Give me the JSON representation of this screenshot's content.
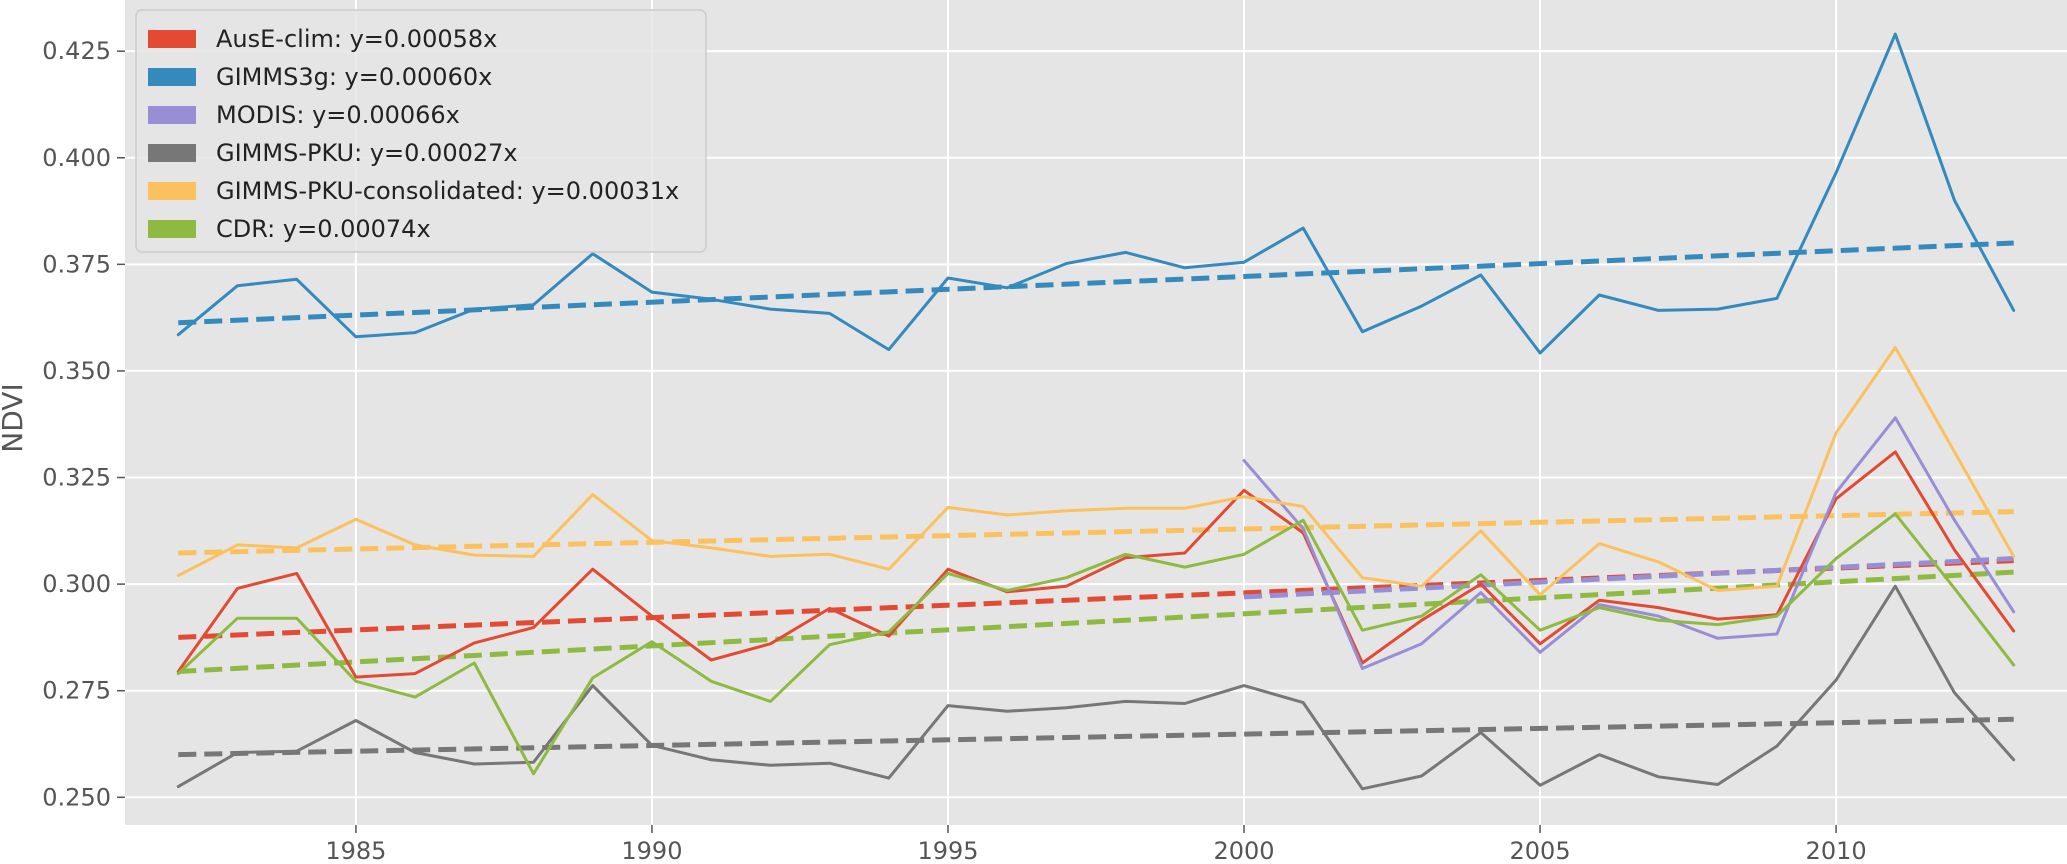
{
  "chart_data": {
    "type": "line",
    "title": "",
    "xlabel": "",
    "ylabel": "NDVI",
    "xlim": [
      1981.1,
      2013.9
    ],
    "ylim": [
      0.2435,
      0.437
    ],
    "x_ticks": [
      1985,
      1990,
      1995,
      2000,
      2005,
      2010
    ],
    "y_ticks": [
      0.25,
      0.275,
      0.3,
      0.325,
      0.35,
      0.375,
      0.4,
      0.425
    ],
    "y_tick_labels": [
      "0.250",
      "0.275",
      "0.300",
      "0.325",
      "0.350",
      "0.375",
      "0.400",
      "0.425"
    ],
    "grid": true,
    "legend_position": "upper-left",
    "background": "#e5e5e5",
    "series": [
      {
        "name": "AusE-clim: y=0.00058x",
        "color": "#e24a33",
        "x_start": 1982,
        "values": [
          0.2795,
          0.299,
          0.3025,
          0.2782,
          0.279,
          0.2862,
          0.2898,
          0.3035,
          0.2925,
          0.2822,
          0.286,
          0.2943,
          0.2878,
          0.3035,
          0.2982,
          0.2995,
          0.3062,
          0.3073,
          0.322,
          0.312,
          0.2815,
          0.2915,
          0.3,
          0.286,
          0.2962,
          0.2945,
          0.2918,
          0.2928,
          0.32,
          0.331,
          0.308,
          0.289
        ],
        "trend": [
          0.2875,
          0.3055
        ]
      },
      {
        "name": "GIMMS3g: y=0.00060x",
        "color": "#348abd",
        "x_start": 1982,
        "values": [
          0.3585,
          0.37,
          0.3715,
          0.358,
          0.359,
          0.3645,
          0.3655,
          0.3775,
          0.3685,
          0.3668,
          0.3645,
          0.3635,
          0.355,
          0.3718,
          0.3695,
          0.3752,
          0.3778,
          0.3742,
          0.3755,
          0.3835,
          0.3592,
          0.3652,
          0.3725,
          0.3542,
          0.3678,
          0.3642,
          0.3645,
          0.367,
          0.3965,
          0.429,
          0.39,
          0.3642
        ],
        "trend": [
          0.3613,
          0.38
        ]
      },
      {
        "name": "MODIS: y=0.00066x",
        "color": "#988ed5",
        "x_start": 2000,
        "values": [
          0.329,
          0.313,
          0.2802,
          0.286,
          0.298,
          0.284,
          0.2952,
          0.2925,
          0.2873,
          0.2883,
          0.3215,
          0.339,
          0.315,
          0.2935
        ],
        "trend": [
          0.297,
          0.306
        ]
      },
      {
        "name": "GIMMS-PKU: y=0.00027x",
        "color": "#777777",
        "x_start": 1982,
        "values": [
          0.2525,
          0.2605,
          0.2608,
          0.268,
          0.2605,
          0.2578,
          0.2582,
          0.2762,
          0.2622,
          0.2588,
          0.2575,
          0.258,
          0.2545,
          0.2715,
          0.2702,
          0.271,
          0.2725,
          0.272,
          0.2762,
          0.2722,
          0.252,
          0.255,
          0.2652,
          0.2528,
          0.26,
          0.2548,
          0.253,
          0.262,
          0.2775,
          0.2995,
          0.2745,
          0.2588
        ],
        "trend": [
          0.26,
          0.2683
        ]
      },
      {
        "name": "GIMMS-PKU-consolidated: y=0.00031x",
        "color": "#fbc15e",
        "x_start": 1982,
        "values": [
          0.302,
          0.3092,
          0.3085,
          0.3152,
          0.3092,
          0.3068,
          0.3065,
          0.321,
          0.3102,
          0.3085,
          0.3065,
          0.307,
          0.3035,
          0.318,
          0.3162,
          0.3172,
          0.3178,
          0.3178,
          0.3205,
          0.3182,
          0.3015,
          0.2995,
          0.3125,
          0.2975,
          0.3095,
          0.3052,
          0.2985,
          0.2995,
          0.3355,
          0.3555,
          0.331,
          0.3065
        ],
        "trend": [
          0.3073,
          0.317
        ]
      },
      {
        "name": "CDR: y=0.00074x",
        "color": "#8eba42",
        "x_start": 1982,
        "values": [
          0.279,
          0.292,
          0.292,
          0.2772,
          0.2735,
          0.2815,
          0.2555,
          0.278,
          0.2865,
          0.2772,
          0.2725,
          0.2858,
          0.2888,
          0.3025,
          0.2985,
          0.3015,
          0.307,
          0.304,
          0.307,
          0.315,
          0.2892,
          0.2925,
          0.3022,
          0.2892,
          0.2945,
          0.2915,
          0.2905,
          0.2925,
          0.306,
          0.3165,
          0.299,
          0.281
        ],
        "trend": [
          0.2795,
          0.3028
        ]
      }
    ]
  }
}
